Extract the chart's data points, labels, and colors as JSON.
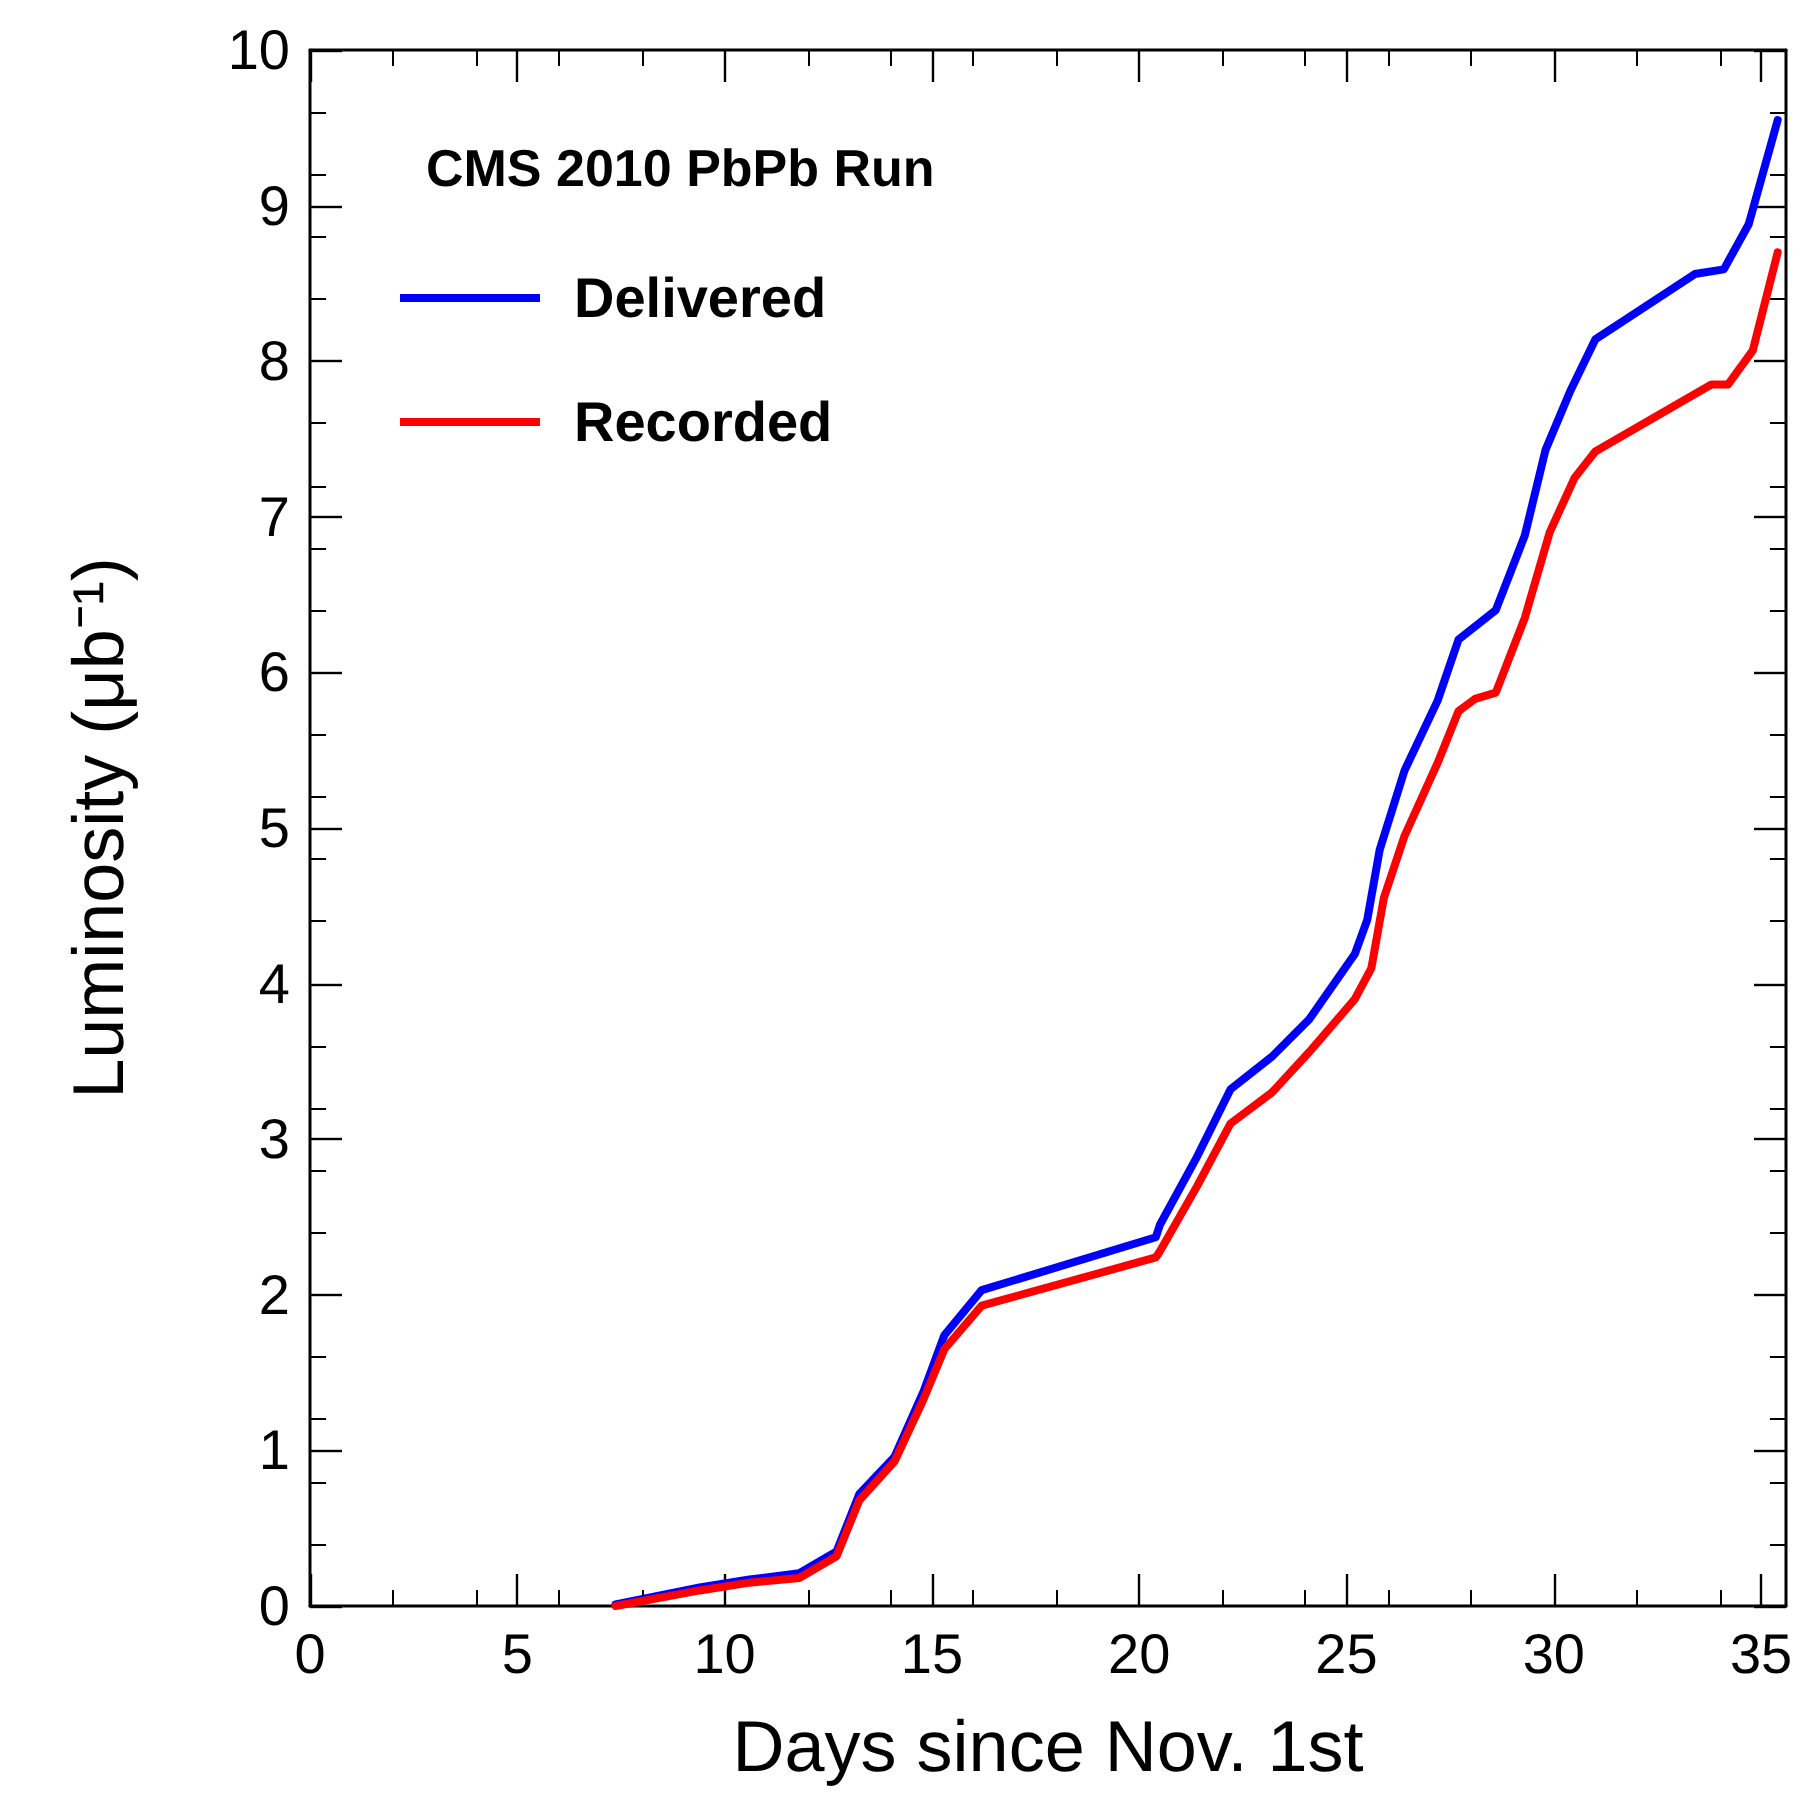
{
  "chart_data": {
    "type": "line",
    "title": "CMS 2010 PbPb Run",
    "xlabel": "Days since Nov. 1st",
    "ylabel": "Luminosity (μb⁻¹)",
    "xlim": [
      0,
      35.6
    ],
    "xticks": [
      0,
      5,
      10,
      15,
      20,
      25,
      30,
      35
    ],
    "ylim": [
      0,
      10
    ],
    "yticks": [
      0,
      1,
      2,
      3,
      4,
      5,
      6,
      7,
      8,
      9,
      10
    ],
    "legend": "top left",
    "grid": false,
    "marker": "none",
    "line_style": "solid",
    "series": [
      {
        "name": "Delivered",
        "color": "#0000ff",
        "x": [
          7.37,
          9.4,
          10.6,
          11.8,
          12.7,
          13.25,
          14.1,
          14.8,
          15.3,
          16.2,
          20.4,
          20.5,
          21.4,
          22.2,
          23.2,
          24.1,
          25.2,
          25.5,
          25.8,
          26.4,
          27.2,
          27.7,
          28.6,
          29.3,
          29.8,
          30.4,
          31.0,
          33.4,
          34.1,
          34.7,
          35.4
        ],
        "values": [
          0.01,
          0.12,
          0.17,
          0.21,
          0.35,
          0.72,
          0.96,
          1.38,
          1.74,
          2.03,
          2.37,
          2.45,
          2.89,
          3.32,
          3.53,
          3.77,
          4.19,
          4.41,
          4.86,
          5.37,
          5.82,
          6.21,
          6.4,
          6.88,
          7.43,
          7.81,
          8.14,
          8.56,
          8.59,
          8.88,
          9.55
        ]
      },
      {
        "name": "Recorded",
        "color": "#ff0000",
        "x": [
          7.37,
          9.4,
          10.6,
          11.8,
          12.7,
          13.25,
          14.1,
          14.8,
          15.3,
          16.2,
          20.4,
          20.5,
          21.4,
          22.2,
          23.2,
          24.1,
          25.2,
          25.6,
          25.9,
          26.4,
          27.2,
          27.7,
          28.1,
          28.6,
          29.3,
          29.9,
          30.5,
          31.0,
          33.8,
          34.2,
          34.8,
          35.4
        ],
        "values": [
          0.0,
          0.1,
          0.15,
          0.18,
          0.32,
          0.68,
          0.93,
          1.33,
          1.65,
          1.93,
          2.24,
          2.28,
          2.7,
          3.1,
          3.3,
          3.56,
          3.9,
          4.1,
          4.55,
          4.95,
          5.42,
          5.75,
          5.83,
          5.87,
          6.35,
          6.9,
          7.25,
          7.42,
          7.85,
          7.85,
          8.07,
          8.7
        ]
      }
    ]
  }
}
